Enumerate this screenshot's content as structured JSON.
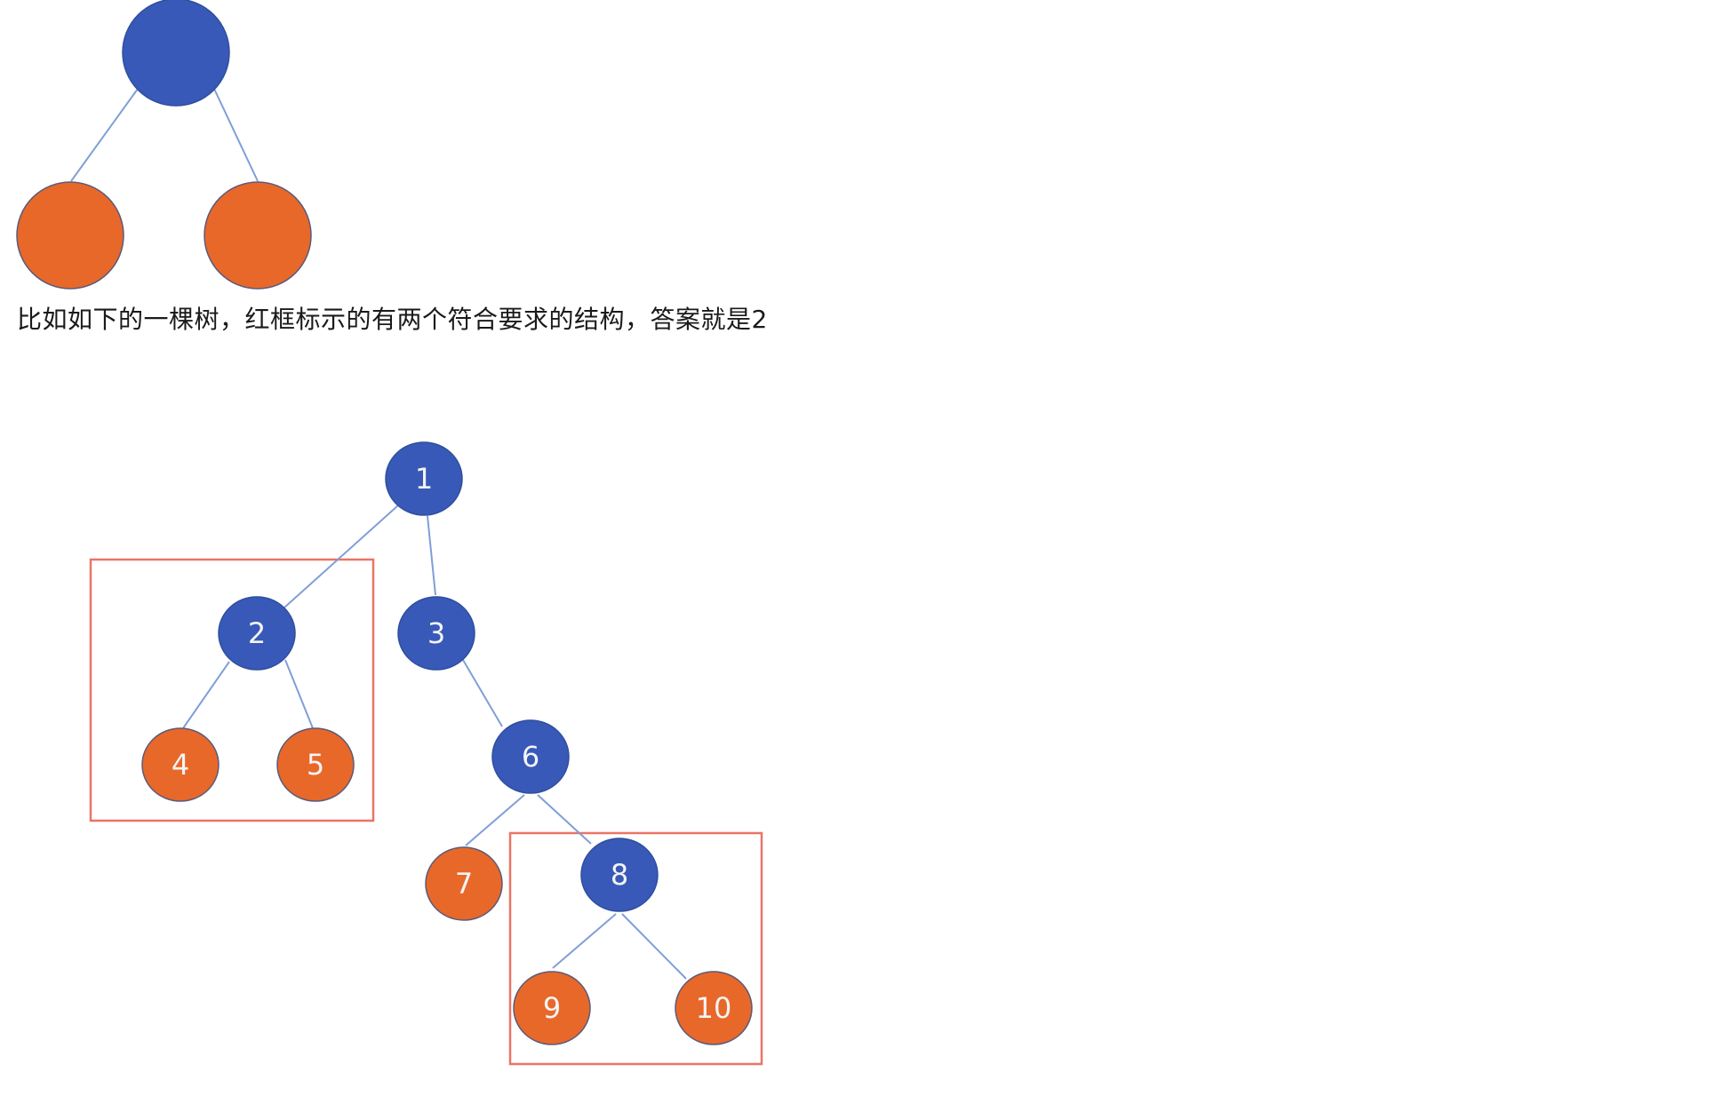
{
  "caption": "比如如下的一棵树，红框标示的有两个符合要求的结构，答案就是2",
  "pattern_tree": {
    "nodes": [
      {
        "id": "root",
        "color": "blue"
      },
      {
        "id": "left",
        "color": "orange"
      },
      {
        "id": "right",
        "color": "orange"
      }
    ],
    "edges": [
      [
        "root",
        "left"
      ],
      [
        "root",
        "right"
      ]
    ]
  },
  "example_tree": {
    "nodes": [
      {
        "id": "n1",
        "label": "1",
        "color": "blue"
      },
      {
        "id": "n2",
        "label": "2",
        "color": "blue"
      },
      {
        "id": "n3",
        "label": "3",
        "color": "blue"
      },
      {
        "id": "n4",
        "label": "4",
        "color": "orange"
      },
      {
        "id": "n5",
        "label": "5",
        "color": "orange"
      },
      {
        "id": "n6",
        "label": "6",
        "color": "blue"
      },
      {
        "id": "n7",
        "label": "7",
        "color": "orange"
      },
      {
        "id": "n8",
        "label": "8",
        "color": "blue"
      },
      {
        "id": "n9",
        "label": "9",
        "color": "orange"
      },
      {
        "id": "n10",
        "label": "10",
        "color": "orange"
      }
    ],
    "edges": [
      [
        "n1",
        "n2"
      ],
      [
        "n1",
        "n3"
      ],
      [
        "n2",
        "n4"
      ],
      [
        "n2",
        "n5"
      ],
      [
        "n3",
        "n6"
      ],
      [
        "n6",
        "n7"
      ],
      [
        "n6",
        "n8"
      ],
      [
        "n8",
        "n9"
      ],
      [
        "n8",
        "n10"
      ]
    ],
    "highlighted_subtrees": [
      "n2",
      "n8"
    ]
  },
  "colors": {
    "blue": "#3859b8",
    "orange": "#e8682a",
    "edge": "#7f9fd6",
    "highlight": "#ea7466"
  }
}
